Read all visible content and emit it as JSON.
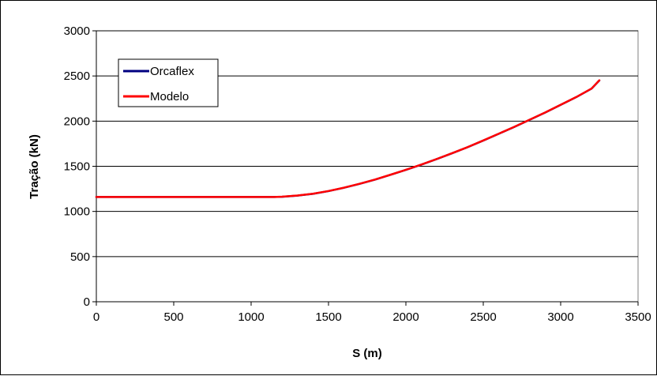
{
  "chart_data": {
    "type": "line",
    "title": "",
    "xlabel": "S (m)",
    "ylabel": "Tração (kN)",
    "xlim": [
      0,
      3500
    ],
    "ylim": [
      0,
      3000
    ],
    "xticks": [
      0,
      500,
      1000,
      1500,
      2000,
      2500,
      3000,
      3500
    ],
    "yticks": [
      0,
      500,
      1000,
      1500,
      2000,
      2500,
      3000
    ],
    "grid": "horizontal",
    "legend": "top-left",
    "series": [
      {
        "name": "Orcaflex",
        "color": "#000080",
        "x": [
          0,
          500,
          1000,
          1150,
          1200,
          1300,
          1400,
          1500,
          1600,
          1700,
          1800,
          1900,
          2000,
          2100,
          2200,
          2300,
          2400,
          2500,
          2600,
          2700,
          2800,
          2900,
          3000,
          3100,
          3200,
          3250
        ],
        "y": [
          1160,
          1160,
          1160,
          1160,
          1162,
          1175,
          1195,
          1225,
          1262,
          1305,
          1352,
          1405,
          1460,
          1518,
          1580,
          1645,
          1712,
          1785,
          1860,
          1935,
          2015,
          2095,
          2180,
          2265,
          2360,
          2450
        ]
      },
      {
        "name": "Modelo",
        "color": "#ff0000",
        "x": [
          0,
          500,
          1000,
          1150,
          1200,
          1300,
          1400,
          1500,
          1600,
          1700,
          1800,
          1900,
          2000,
          2100,
          2200,
          2300,
          2400,
          2500,
          2600,
          2700,
          2800,
          2900,
          3000,
          3100,
          3200,
          3250
        ],
        "y": [
          1160,
          1160,
          1160,
          1160,
          1163,
          1176,
          1196,
          1226,
          1263,
          1306,
          1353,
          1406,
          1461,
          1519,
          1581,
          1646,
          1713,
          1786,
          1861,
          1936,
          2016,
          2096,
          2181,
          2266,
          2361,
          2452
        ]
      }
    ]
  }
}
